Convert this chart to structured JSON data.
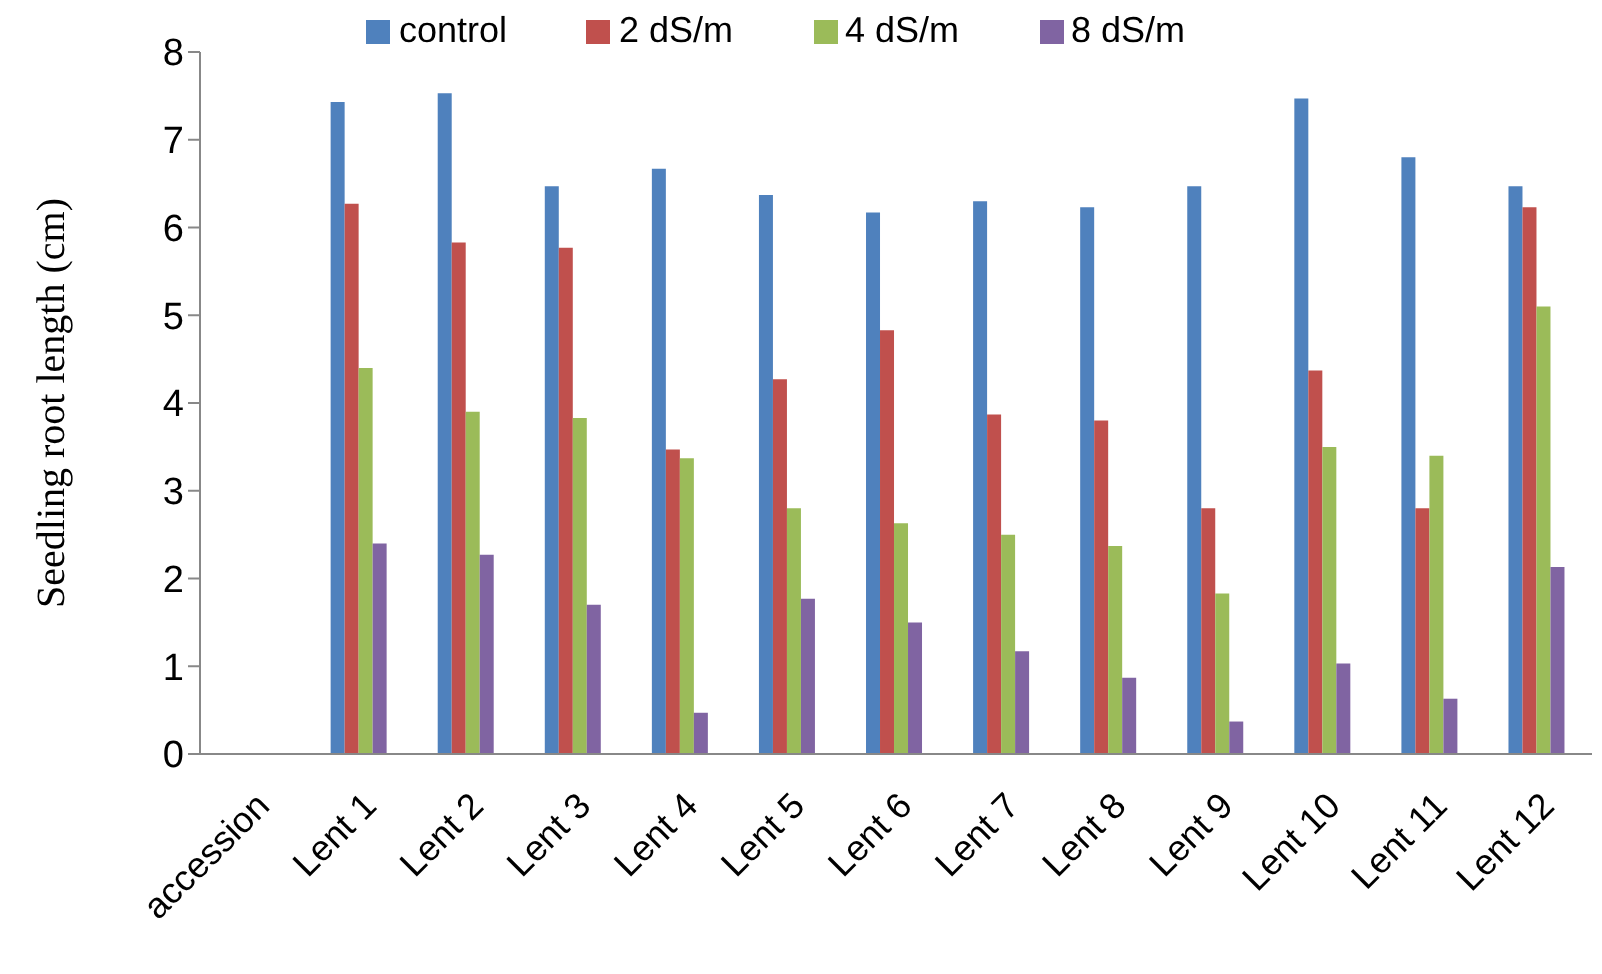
{
  "chart_data": {
    "type": "bar",
    "ylabel": "Seedling root length (cm)",
    "categories": [
      "accession",
      "Lent 1",
      "Lent 2",
      "Lent 3",
      "Lent 4",
      "Lent 5",
      "Lent 6",
      "Lent 7",
      "Lent 8",
      "Lent 9",
      "Lent 10",
      "Lent 11",
      "Lent 12"
    ],
    "series": [
      {
        "name": "control",
        "color": "#4f81bd",
        "values": [
          null,
          7.43,
          7.53,
          6.47,
          6.67,
          6.37,
          6.17,
          6.3,
          6.23,
          6.47,
          7.47,
          6.8,
          6.47
        ]
      },
      {
        "name": "2 dS/m",
        "color": "#c0504d",
        "values": [
          null,
          6.27,
          5.83,
          5.77,
          3.47,
          4.27,
          4.83,
          3.87,
          3.8,
          2.8,
          4.37,
          2.8,
          6.23
        ]
      },
      {
        "name": "4 dS/m",
        "color": "#9bbb59",
        "values": [
          null,
          4.4,
          3.9,
          3.83,
          3.37,
          2.8,
          2.63,
          2.5,
          2.37,
          1.83,
          3.5,
          3.4,
          5.1
        ]
      },
      {
        "name": "8 dS/m",
        "color": "#8064a2",
        "values": [
          null,
          2.4,
          2.27,
          1.7,
          0.47,
          1.77,
          1.5,
          1.17,
          0.87,
          0.37,
          1.03,
          0.63,
          2.13
        ]
      }
    ],
    "ylim": [
      0,
      8
    ],
    "yticks": [
      0,
      1,
      2,
      3,
      4,
      5,
      6,
      7,
      8
    ],
    "grid": false,
    "legend": "top"
  }
}
